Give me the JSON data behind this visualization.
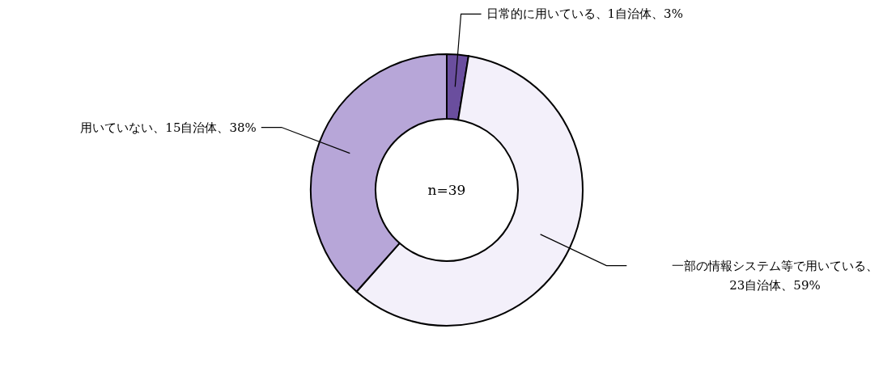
{
  "chart_data": {
    "type": "donut",
    "categories": [
      "日常的に用いている、1自治体、3%",
      "一部の情報システム等で用いている、23自治体、59%",
      "用いていない、15自治体、38%"
    ],
    "values": [
      1,
      23,
      15
    ],
    "colors": [
      "#6a4e9e",
      "#f3f0fa",
      "#b7a6d8"
    ],
    "annotations": [
      "n=39"
    ]
  }
}
